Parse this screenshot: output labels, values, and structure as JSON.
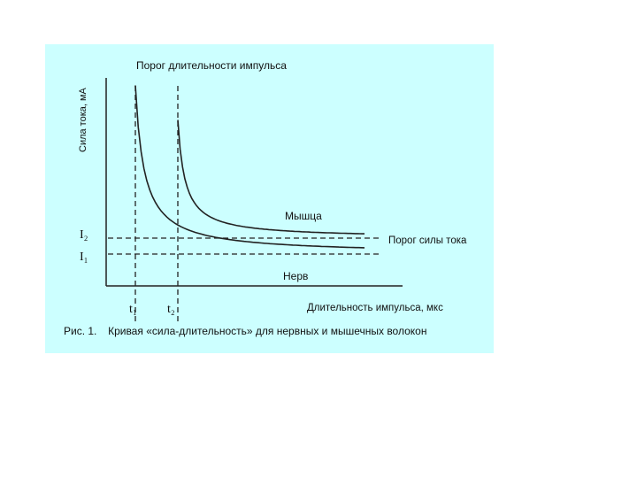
{
  "chart_data": {
    "type": "line",
    "title": "Порог длительности импульса",
    "ylabel": "Сила тока, мА",
    "xlabel": "Длительность импульса, мкс",
    "x_ticks": [
      "t₁",
      "t₂"
    ],
    "y_ticks": [
      "I₂",
      "I₁"
    ],
    "series": [
      {
        "name": "Мышца",
        "threshold_current": "I₂",
        "min_duration": "t₂",
        "color": "#222222"
      },
      {
        "name": "Нерв",
        "threshold_current": "I₁",
        "min_duration": "t₁",
        "color": "#222222"
      }
    ],
    "annotations": {
      "current_threshold": "Порог силы тока"
    },
    "grid": false,
    "reference_lines": "dashed"
  },
  "caption": {
    "number": "Рис. 1.",
    "text": "Кривая «сила-длительность» для нервных  и мышечных волокон"
  },
  "colors": {
    "panel_bg": "#ccffff",
    "page_bg": "#ffffff",
    "ink": "#222222"
  }
}
